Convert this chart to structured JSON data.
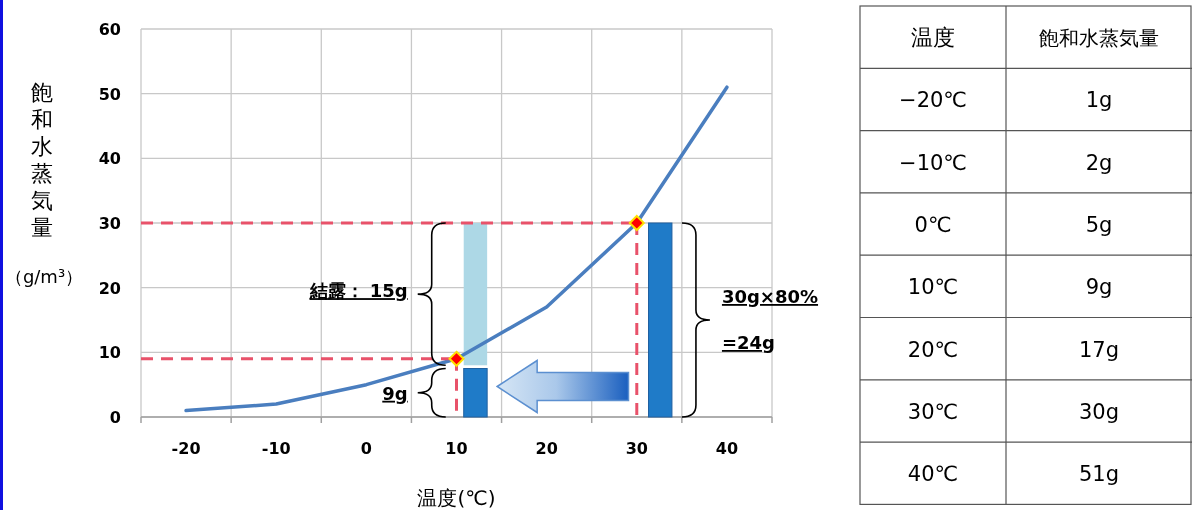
{
  "chart_data": {
    "type": "line",
    "xlabel": "温度(℃)",
    "ylabel": "飽和水蒸気量（g/m³）",
    "x": [
      -20,
      -10,
      0,
      10,
      20,
      30,
      40
    ],
    "series": [
      {
        "color": "#4a7ebf",
        "values": [
          1,
          2,
          5,
          9,
          17,
          30,
          51
        ]
      },
      {
        "type": "bar",
        "color": "#add8e6",
        "x": [
          12.1
        ],
        "base": [
          8
        ],
        "values": [
          22
        ]
      },
      {
        "type": "bar",
        "color": "#1f7bc8",
        "x": [
          12.1,
          32.6
        ],
        "values": [
          7.5,
          30
        ]
      },
      {
        "type": "scatter",
        "color": "#ff0000",
        "marker": "diamond",
        "x": [
          10,
          30
        ],
        "values": [
          9,
          30
        ]
      }
    ],
    "xlim": [
      -25,
      45
    ],
    "ylim": [
      0,
      60
    ],
    "xticks": [
      {
        "value": -25,
        "label": null
      },
      -20,
      {
        "value": -15,
        "label": null
      },
      -10,
      {
        "value": -5,
        "label": null
      },
      0,
      {
        "value": 5,
        "label": null
      },
      10,
      {
        "value": 15,
        "label": null
      },
      20,
      {
        "value": 25,
        "label": null
      },
      30,
      {
        "value": 35,
        "label": null
      },
      40,
      {
        "value": 45,
        "label": null
      }
    ],
    "yticks": [
      0,
      10,
      20,
      30,
      40,
      50,
      60
    ],
    "grid": true,
    "ref_lines": [
      {
        "axis": "y",
        "value": 30,
        "color": "#e8526a",
        "line_style": "dashed"
      },
      {
        "axis": "x",
        "value": 30,
        "color": "#e8526a",
        "line_style": "dashed"
      },
      {
        "axis": "y",
        "value": 9,
        "color": "#e8526a",
        "line_style": "dashed"
      },
      {
        "axis": "x",
        "value": 10,
        "color": "#e8526a",
        "line_style": "dashed"
      }
    ],
    "annotations": [
      "結露： 15g",
      "9g",
      "30g×80%",
      "=24g",
      "温度",
      "飽和水蒸気量",
      "−20℃",
      "1g",
      "−10℃",
      "2g",
      "0℃",
      "5g",
      "10℃",
      "9g",
      "20℃",
      "17g",
      "30℃",
      "30g",
      "40℃",
      "51g"
    ]
  }
}
